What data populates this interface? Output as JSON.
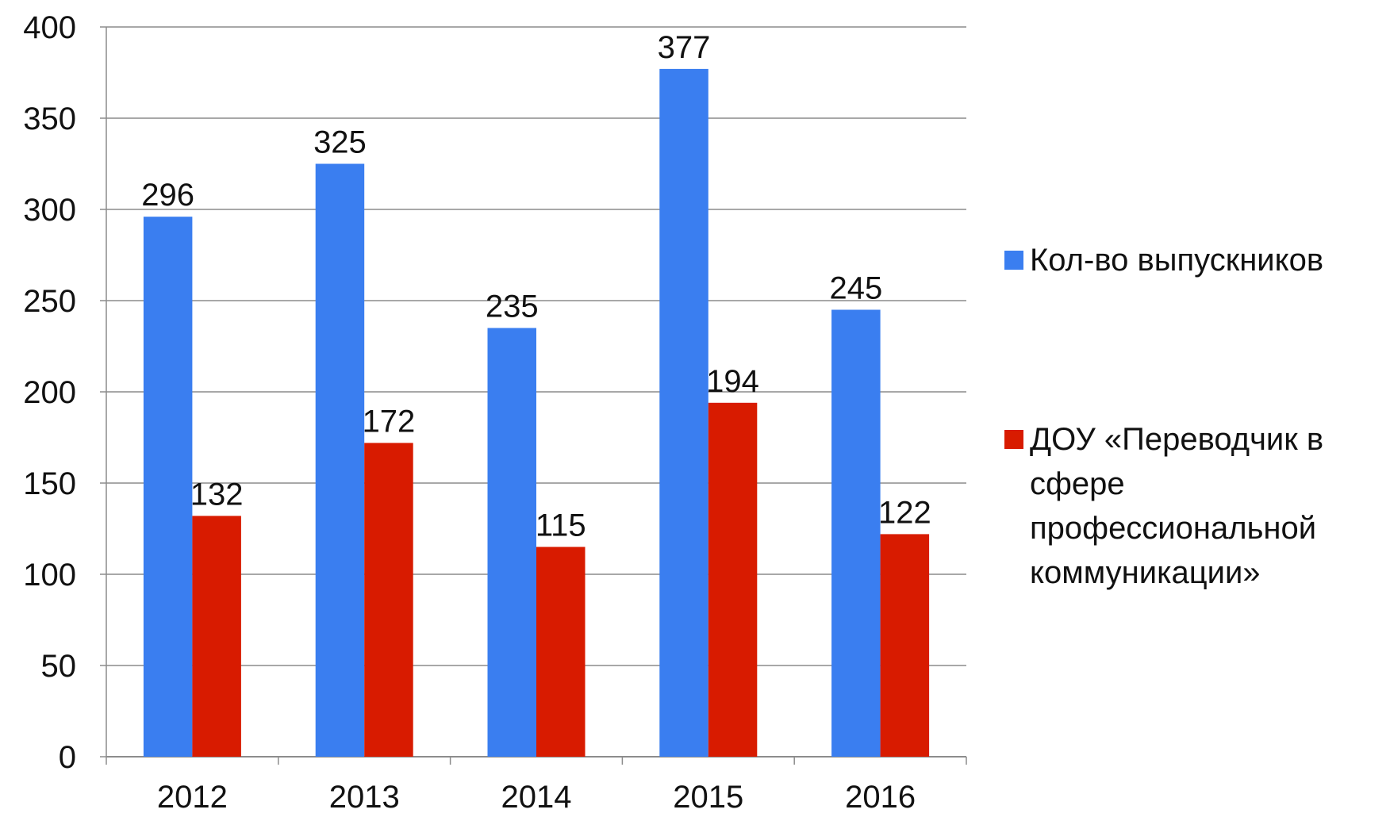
{
  "chart_data": {
    "type": "bar",
    "categories": [
      "2012",
      "2013",
      "2014",
      "2015",
      "2016"
    ],
    "series": [
      {
        "name": "Кол-во выпускников",
        "color": "#3a7ef0",
        "values": [
          296,
          325,
          235,
          377,
          245
        ]
      },
      {
        "name": "ДОУ «Переводчик в сфере профессиональной коммуникации»",
        "color": "#d81b00",
        "values": [
          132,
          172,
          115,
          194,
          122
        ]
      }
    ],
    "ylim": [
      0,
      400
    ],
    "yticks": [
      0,
      50,
      100,
      150,
      200,
      250,
      300,
      350,
      400
    ],
    "grid": true,
    "legend": "right"
  }
}
